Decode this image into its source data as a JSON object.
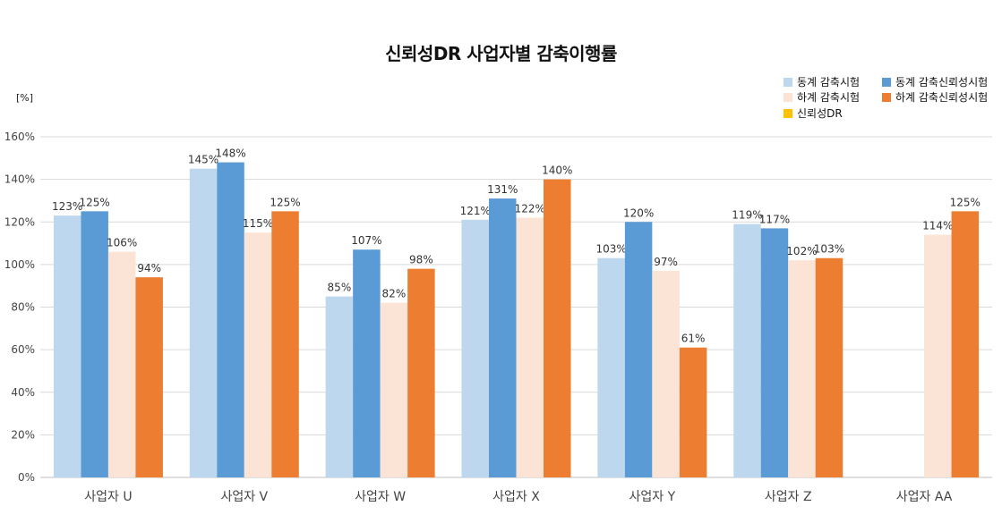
{
  "chart_data": {
    "type": "bar",
    "title": "신뢰성DR 사업자별 감축이행률",
    "ylabel": "[%]",
    "xlabel": "",
    "ylim": [
      0,
      160
    ],
    "yticks": [
      0,
      20,
      40,
      60,
      80,
      100,
      120,
      140,
      160
    ],
    "ytick_labels": [
      "0%",
      "20%",
      "40%",
      "60%",
      "80%",
      "100%",
      "120%",
      "140%",
      "160%"
    ],
    "grid": true,
    "legend_position": "top-right",
    "categories": [
      "사업자 U",
      "사업자 V",
      "사업자 W",
      "사업자 X",
      "사업자 Y",
      "사업자 Z",
      "사업자 AA"
    ],
    "series": [
      {
        "name": "동계 감축시험",
        "color": "#bdd7ee",
        "values": [
          123,
          145,
          85,
          121,
          103,
          119,
          null
        ],
        "labels": [
          "123%",
          "145%",
          "85%",
          "121%",
          "103%",
          "119%",
          ""
        ]
      },
      {
        "name": "동계 감축신뢰성시험",
        "color": "#5b9bd5",
        "values": [
          125,
          148,
          107,
          131,
          120,
          117,
          null
        ],
        "labels": [
          "125%",
          "148%",
          "107%",
          "131%",
          "120%",
          "117%",
          ""
        ]
      },
      {
        "name": "하계 감축시험",
        "color": "#fbe3d6",
        "values": [
          106,
          115,
          82,
          122,
          97,
          102,
          114
        ],
        "labels": [
          "106%",
          "115%",
          "82%",
          "122%",
          "97%",
          "102%",
          "114%"
        ]
      },
      {
        "name": "하계 감축신뢰성시험",
        "color": "#ed7d31",
        "values": [
          94,
          125,
          98,
          140,
          61,
          103,
          125
        ],
        "labels": [
          "94%",
          "125%",
          "98%",
          "140%",
          "61%",
          "103%",
          "125%"
        ]
      },
      {
        "name": "신뢰성DR",
        "color": "#ffc000",
        "values": [
          null,
          null,
          null,
          null,
          null,
          null,
          null
        ],
        "labels": [
          "",
          "",
          "",
          "",
          "",
          "",
          ""
        ]
      }
    ]
  }
}
